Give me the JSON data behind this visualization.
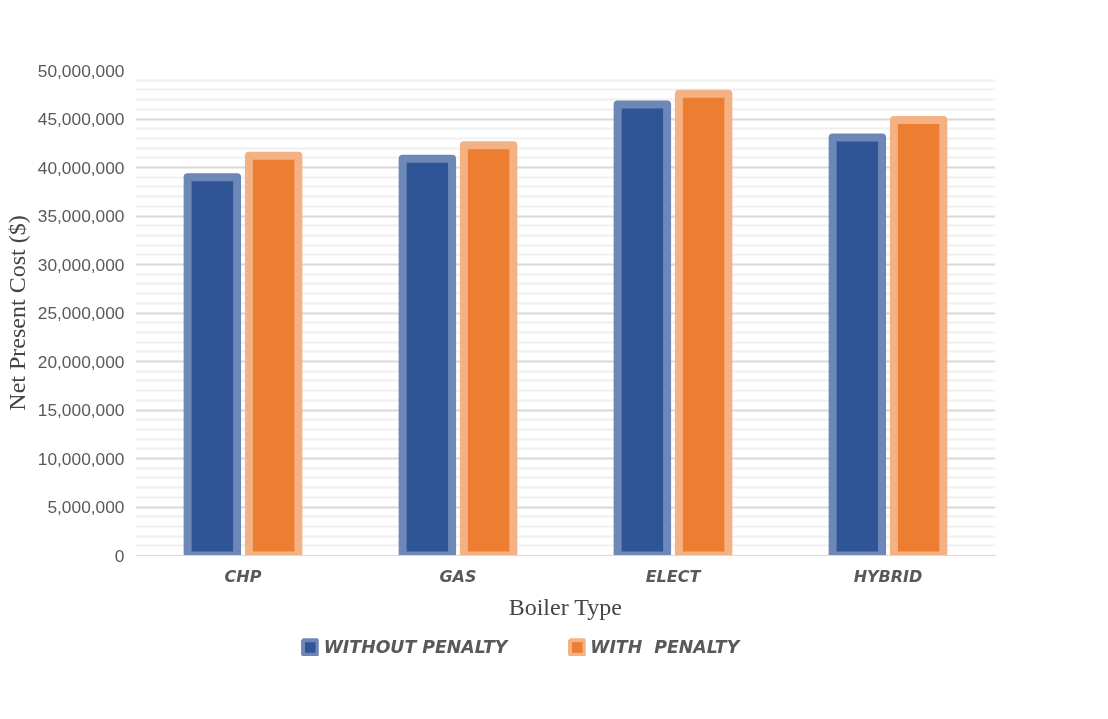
{
  "chart_data": {
    "type": "bar",
    "xlabel": "Boiler Type",
    "ylabel": "Net Present Cost ($)",
    "categories": [
      "CHP",
      "GAS",
      "ELECT",
      "HYBRID"
    ],
    "series": [
      {
        "name": "WITHOUT PENALTY",
        "color": "#2f5597",
        "values": [
          39000000,
          40900000,
          46500000,
          43100000
        ]
      },
      {
        "name": "WITH  PENALTY",
        "color": "#ed7d31",
        "values": [
          41200000,
          42300000,
          47600000,
          44900000
        ]
      }
    ],
    "ylim": [
      0,
      50000000
    ],
    "yticks": [
      {
        "value": 0,
        "label": "0"
      },
      {
        "value": 5000000,
        "label": "5,000,000"
      },
      {
        "value": 10000000,
        "label": "10,000,000"
      },
      {
        "value": 15000000,
        "label": "15,000,000"
      },
      {
        "value": 20000000,
        "label": "20,000,000"
      },
      {
        "value": 25000000,
        "label": "25,000,000"
      },
      {
        "value": 30000000,
        "label": "30,000,000"
      },
      {
        "value": 35000000,
        "label": "35,000,000"
      },
      {
        "value": 40000000,
        "label": "40,000,000"
      },
      {
        "value": 45000000,
        "label": "45,000,000"
      },
      {
        "value": 50000000,
        "label": "50,000,000"
      }
    ],
    "grid": "y",
    "legend": "bottom"
  }
}
